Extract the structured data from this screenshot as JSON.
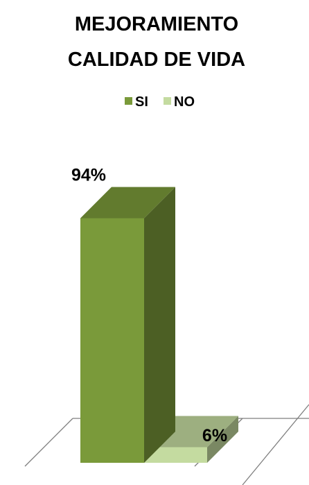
{
  "chart_data": {
    "type": "bar",
    "title": [
      "MEJORAMIENTO",
      "CALIDAD DE VIDA"
    ],
    "categories": [
      "SI",
      "NO"
    ],
    "values": [
      94,
      6
    ],
    "value_labels": [
      "94%",
      "6%"
    ],
    "unit": "%",
    "ylim": [
      0,
      100
    ],
    "style": "3d-column",
    "legend": {
      "position": "top",
      "entries": [
        "SI",
        "NO"
      ]
    },
    "grid": false,
    "colors": {
      "SI": "#7a9a3a",
      "NO": "#c4dba0"
    }
  }
}
